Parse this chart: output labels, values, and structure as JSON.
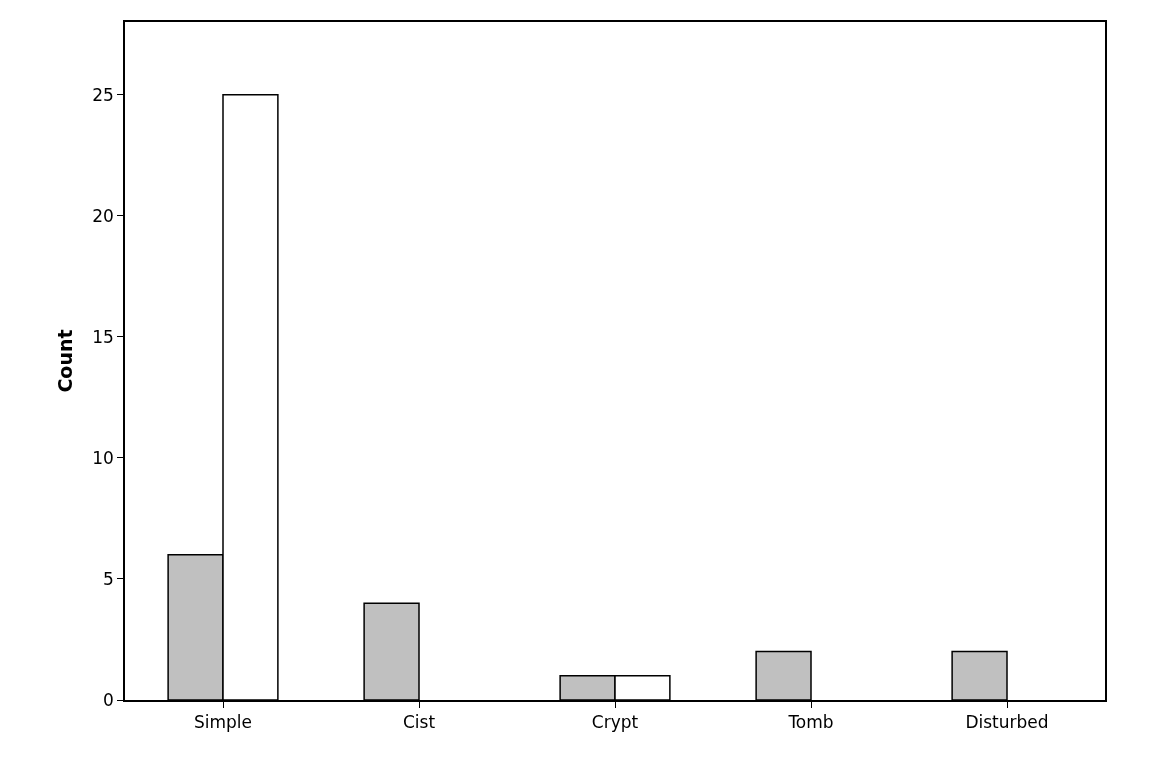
{
  "chart_data": {
    "type": "bar",
    "ylabel": "Count",
    "categories": [
      "Simple",
      "Cist",
      "Crypt",
      "Tomb",
      "Disturbed"
    ],
    "series": [
      {
        "color": "#c0c0c0",
        "values": [
          6,
          4,
          1,
          2,
          2
        ]
      },
      {
        "color": "#ffffff",
        "values": [
          25,
          0,
          1,
          0,
          0
        ]
      }
    ],
    "ylim": [
      0,
      28
    ],
    "yticks": [
      0,
      5,
      10,
      15,
      20,
      25
    ]
  }
}
